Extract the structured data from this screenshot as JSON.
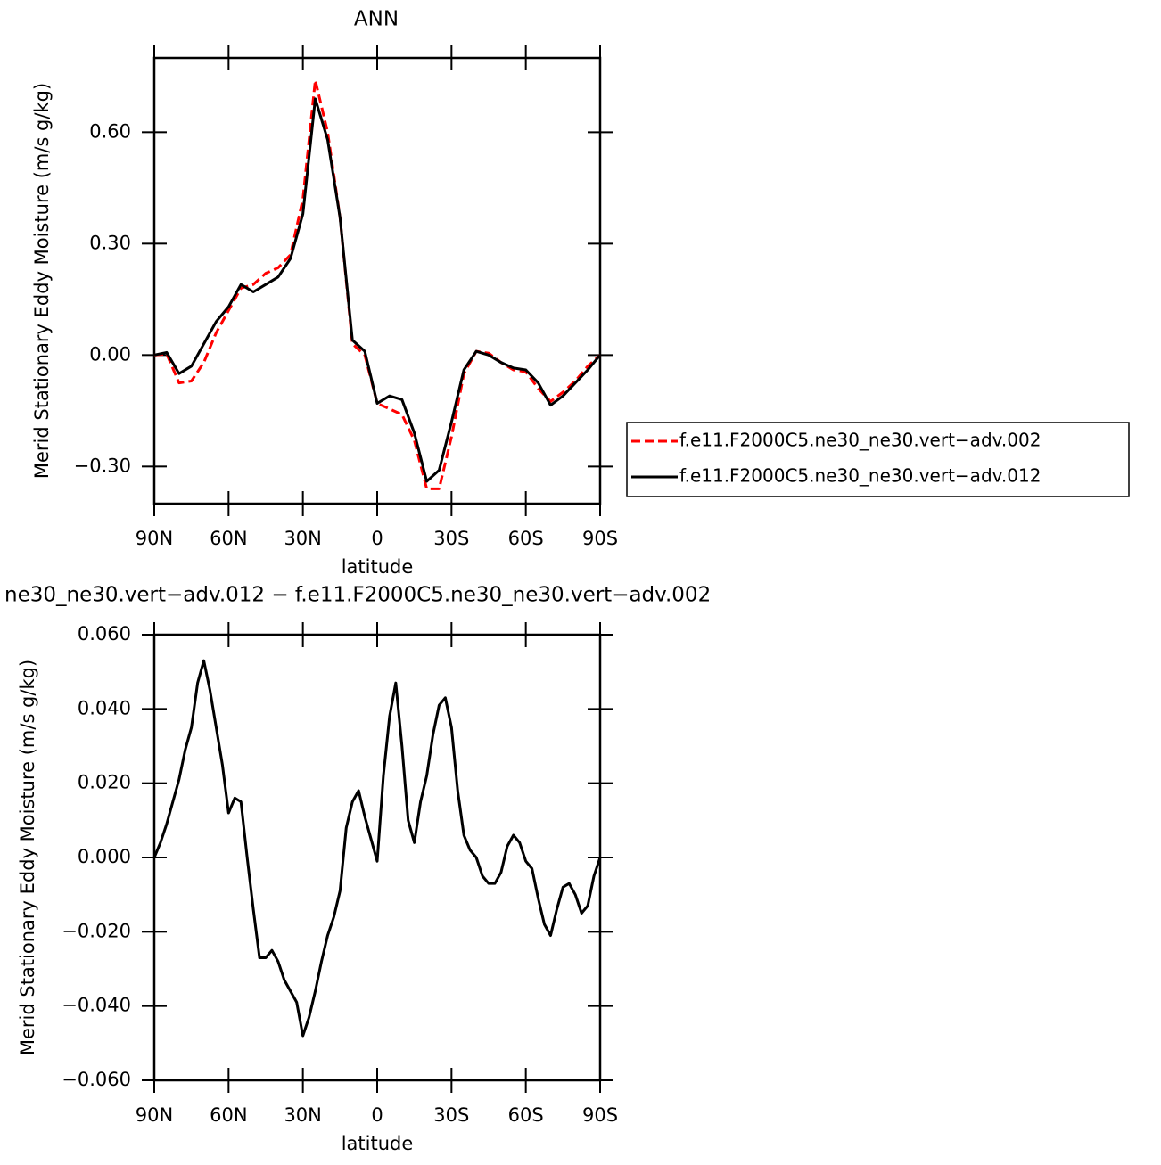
{
  "chart_data": [
    {
      "type": "line",
      "title": "ANN",
      "xlabel": "latitude",
      "ylabel": "Merid Stationary Eddy Moisture (m/s g/kg)",
      "x": [
        90,
        85,
        80,
        75,
        70,
        65,
        60,
        55,
        50,
        45,
        40,
        35,
        30,
        25,
        20,
        15,
        10,
        5,
        0,
        -5,
        -10,
        -15,
        -20,
        -25,
        -30,
        -35,
        -40,
        -45,
        -50,
        -55,
        -60,
        -65,
        -70,
        -75,
        -80,
        -85,
        -90
      ],
      "series": [
        {
          "name": "f.e11.F2000C5.ne30_ne30.vert−adv.002",
          "color": "#ff0000",
          "dashed": true,
          "values": [
            0,
            0.003,
            -0.075,
            -0.07,
            -0.02,
            0.06,
            0.12,
            0.18,
            0.19,
            0.22,
            0.235,
            0.27,
            0.42,
            0.74,
            0.6,
            0.37,
            0.03,
            0.0,
            -0.13,
            -0.145,
            -0.16,
            -0.23,
            -0.36,
            -0.36,
            -0.22,
            -0.05,
            0.01,
            0.005,
            -0.02,
            -0.04,
            -0.045,
            -0.09,
            -0.125,
            -0.1,
            -0.07,
            -0.03,
            0
          ]
        },
        {
          "name": "f.e11.F2000C5.ne30_ne30.vert−adv.012",
          "color": "#000000",
          "dashed": false,
          "values": [
            0,
            0.007,
            -0.05,
            -0.03,
            0.03,
            0.09,
            0.13,
            0.19,
            0.17,
            0.19,
            0.21,
            0.26,
            0.38,
            0.69,
            0.58,
            0.37,
            0.04,
            0.01,
            -0.13,
            -0.11,
            -0.12,
            -0.21,
            -0.34,
            -0.31,
            -0.18,
            -0.04,
            0.01,
            0.0,
            -0.02,
            -0.035,
            -0.04,
            -0.075,
            -0.135,
            -0.11,
            -0.075,
            -0.04,
            0
          ]
        }
      ],
      "xlim": [
        90,
        -90
      ],
      "xticks": [
        {
          "value": 90,
          "label": "90N"
        },
        {
          "value": 60,
          "label": "60N"
        },
        {
          "value": 30,
          "label": "30N"
        },
        0,
        {
          "value": -30,
          "label": "30S"
        },
        {
          "value": -60,
          "label": "60S"
        },
        {
          "value": -90,
          "label": "90S"
        }
      ],
      "ylim": [
        -0.4,
        0.8
      ],
      "yticks": [
        {
          "value": -0.3,
          "label": "−0.30"
        },
        {
          "value": 0,
          "label": "0.00"
        },
        {
          "value": 0.3,
          "label": "0.30"
        },
        {
          "value": 0.6,
          "label": "0.60"
        }
      ],
      "legend": "right"
    },
    {
      "type": "line",
      "title": "ne30_ne30.vert−adv.012 − f.e11.F2000C5.ne30_ne30.vert−adv.002",
      "xlabel": "latitude",
      "ylabel": "Merid Stationary Eddy Moisture (m/s g/kg)",
      "x": [
        90,
        87.5,
        85,
        82.5,
        80,
        77.5,
        75,
        72.5,
        70,
        67.5,
        65,
        62.5,
        60,
        57.5,
        55,
        52.5,
        50,
        47.5,
        45,
        42.5,
        40,
        37.5,
        35,
        32.5,
        30,
        27.5,
        25,
        22.5,
        20,
        17.5,
        15,
        12.5,
        10,
        7.5,
        5,
        2.5,
        0,
        -2.5,
        -5,
        -7.5,
        -10,
        -12.5,
        -15,
        -17.5,
        -20,
        -22.5,
        -25,
        -27.5,
        -30,
        -32.5,
        -35,
        -37.5,
        -40,
        -42.5,
        -45,
        -47.5,
        -50,
        -52.5,
        -55,
        -57.5,
        -60,
        -62.5,
        -65,
        -67.5,
        -70,
        -72.5,
        -75,
        -77.5,
        -80,
        -82.5,
        -85,
        -87.5,
        -90
      ],
      "color": "#000000",
      "values": [
        0,
        0.004,
        0.009,
        0.015,
        0.021,
        0.029,
        0.035,
        0.047,
        0.053,
        0.045,
        0.035,
        0.025,
        0.012,
        0.016,
        0.015,
        0.0,
        -0.014,
        -0.027,
        -0.027,
        -0.025,
        -0.028,
        -0.033,
        -0.036,
        -0.039,
        -0.048,
        -0.043,
        -0.036,
        -0.028,
        -0.021,
        -0.016,
        -0.009,
        0.008,
        0.015,
        0.018,
        0.011,
        0.005,
        -0.001,
        0.022,
        0.038,
        0.047,
        0.03,
        0.01,
        0.004,
        0.015,
        0.022,
        0.033,
        0.041,
        0.043,
        0.035,
        0.018,
        0.006,
        0.002,
        0.0,
        -0.005,
        -0.007,
        -0.007,
        -0.004,
        0.003,
        0.006,
        0.004,
        -0.001,
        -0.003,
        -0.011,
        -0.018,
        -0.021,
        -0.014,
        -0.008,
        -0.007,
        -0.01,
        -0.015,
        -0.013,
        -0.005,
        0
      ],
      "xlim": [
        90,
        -90
      ],
      "xticks": [
        {
          "value": 90,
          "label": "90N"
        },
        {
          "value": 60,
          "label": "60N"
        },
        {
          "value": 30,
          "label": "30N"
        },
        0,
        {
          "value": -30,
          "label": "30S"
        },
        {
          "value": -60,
          "label": "60S"
        },
        {
          "value": -90,
          "label": "90S"
        }
      ],
      "ylim": [
        -0.06,
        0.06
      ],
      "yticks": [
        {
          "value": -0.06,
          "label": "−0.060"
        },
        {
          "value": -0.04,
          "label": "−0.040"
        },
        {
          "value": -0.02,
          "label": "−0.020"
        },
        {
          "value": 0,
          "label": "0.000"
        },
        {
          "value": 0.02,
          "label": "0.020"
        },
        {
          "value": 0.04,
          "label": "0.040"
        },
        {
          "value": 0.06,
          "label": "0.060"
        }
      ]
    }
  ]
}
